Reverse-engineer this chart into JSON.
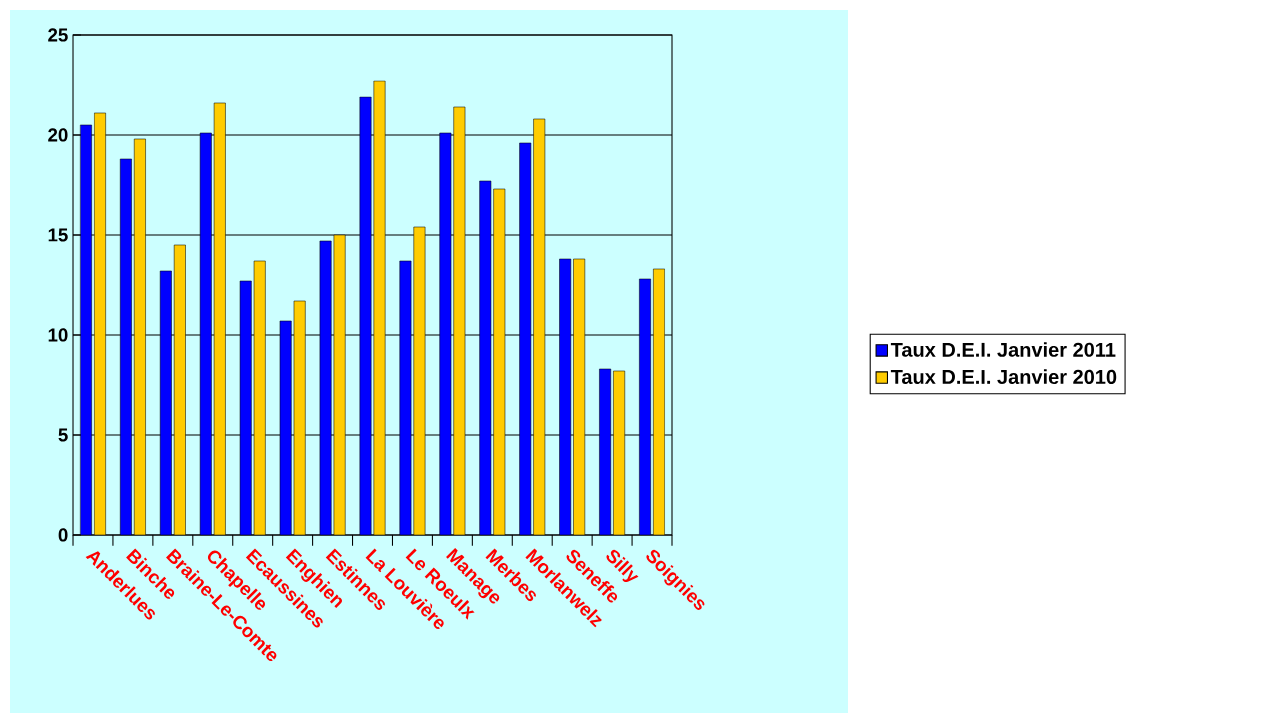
{
  "chart_data": {
    "type": "bar",
    "categories": [
      "Anderlues",
      "Binche",
      "Braine-Le-Comte",
      "Chapelle",
      "Ecaussines",
      "Enghien",
      "Estinnes",
      "La Louvière",
      "Le Roeulx",
      "Manage",
      "Merbes",
      "Morlanwelz",
      "Seneffe",
      "Silly",
      "Soignies"
    ],
    "series": [
      {
        "name": "Taux D.E.I. Janvier 2011",
        "color": "#0000ff",
        "values": [
          20.5,
          18.8,
          13.2,
          20.1,
          12.7,
          10.7,
          14.7,
          21.9,
          13.7,
          20.1,
          17.7,
          19.6,
          13.8,
          8.3,
          12.8
        ]
      },
      {
        "name": "Taux D.E.I. Janvier 2010",
        "color": "#ffcc00",
        "values": [
          21.1,
          19.8,
          14.5,
          21.6,
          13.7,
          11.7,
          15.0,
          22.7,
          15.4,
          21.4,
          17.3,
          20.8,
          13.8,
          8.2,
          13.3
        ]
      }
    ],
    "ylim": [
      0,
      25
    ],
    "yticks": [
      0,
      5,
      10,
      15,
      20,
      25
    ],
    "grid": "y",
    "legend": "right"
  }
}
